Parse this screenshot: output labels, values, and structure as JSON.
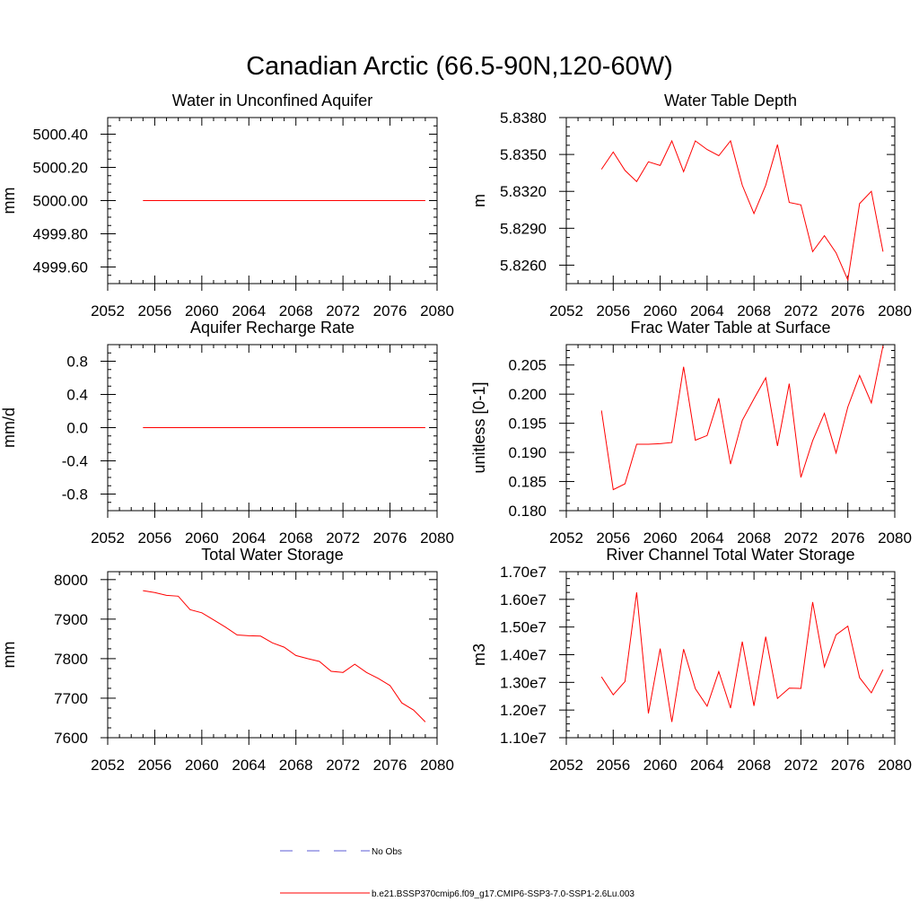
{
  "figure_title": "Canadian Arctic (66.5-90N,120-60W)",
  "legend": {
    "items": [
      {
        "label": "No Obs",
        "color": "#5b5bd6",
        "style": "dashed"
      },
      {
        "label": "b.e21.BSSP370cmip6.f09_g17.CMIP6-SSP3-7.0-SSP1-2.6Lu.003",
        "color": "#ff0000",
        "style": "solid"
      }
    ]
  },
  "chart_data": [
    {
      "type": "line",
      "title": "Water in Unconfined Aquifer",
      "ylabel": "mm",
      "xlim": [
        2052,
        2080
      ],
      "xticks": [
        2052,
        2056,
        2060,
        2064,
        2068,
        2072,
        2076,
        2080
      ],
      "xtick_labels": [
        "2052",
        "2056",
        "2060",
        "2064",
        "2068",
        "2072",
        "2076",
        "2080"
      ],
      "ylim": [
        4999.5,
        5000.5
      ],
      "yticks": [
        4999.6,
        4999.8,
        5000.0,
        5000.2,
        5000.4
      ],
      "ytick_labels": [
        "4999.60",
        "4999.80",
        "5000.00",
        "5000.20",
        "5000.40"
      ],
      "series": [
        {
          "color": "#ff0000",
          "x": [
            2055,
            2056,
            2057,
            2058,
            2059,
            2060,
            2061,
            2062,
            2063,
            2064,
            2065,
            2066,
            2067,
            2068,
            2069,
            2070,
            2071,
            2072,
            2073,
            2074,
            2075,
            2076,
            2077,
            2078,
            2079
          ],
          "values": [
            5000.0,
            5000.0,
            5000.0,
            5000.0,
            5000.0,
            5000.0,
            5000.0,
            5000.0,
            5000.0,
            5000.0,
            5000.0,
            5000.0,
            5000.0,
            5000.0,
            5000.0,
            5000.0,
            5000.0,
            5000.0,
            5000.0,
            5000.0,
            5000.0,
            5000.0,
            5000.0,
            5000.0,
            5000.0
          ]
        }
      ]
    },
    {
      "type": "line",
      "title": "Water Table Depth",
      "ylabel": "m",
      "xlim": [
        2052,
        2080
      ],
      "xticks": [
        2052,
        2056,
        2060,
        2064,
        2068,
        2072,
        2076,
        2080
      ],
      "xtick_labels": [
        "2052",
        "2056",
        "2060",
        "2064",
        "2068",
        "2072",
        "2076",
        "2080"
      ],
      "ylim": [
        5.8245,
        5.838
      ],
      "yticks": [
        5.826,
        5.829,
        5.832,
        5.835,
        5.838
      ],
      "ytick_labels": [
        "5.8260",
        "5.8290",
        "5.8320",
        "5.8350",
        "5.8380"
      ],
      "series": [
        {
          "color": "#ff0000",
          "x": [
            2055,
            2056,
            2057,
            2058,
            2059,
            2060,
            2061,
            2062,
            2063,
            2064,
            2065,
            2066,
            2067,
            2068,
            2069,
            2070,
            2071,
            2072,
            2073,
            2074,
            2075,
            2076,
            2077,
            2078,
            2079
          ],
          "values": [
            5.8338,
            5.8352,
            5.8337,
            5.8328,
            5.8344,
            5.8341,
            5.8361,
            5.8336,
            5.8361,
            5.8354,
            5.8349,
            5.8361,
            5.8325,
            5.8302,
            5.8325,
            5.8358,
            5.8311,
            5.8309,
            5.8271,
            5.8284,
            5.827,
            5.8248,
            5.831,
            5.832,
            5.8271
          ]
        }
      ]
    },
    {
      "type": "line",
      "title": "Aquifer Recharge Rate",
      "ylabel": "mm/d",
      "xlim": [
        2052,
        2080
      ],
      "xticks": [
        2052,
        2056,
        2060,
        2064,
        2068,
        2072,
        2076,
        2080
      ],
      "xtick_labels": [
        "2052",
        "2056",
        "2060",
        "2064",
        "2068",
        "2072",
        "2076",
        "2080"
      ],
      "ylim": [
        -1.0,
        1.0
      ],
      "yticks": [
        -0.8,
        -0.4,
        0.0,
        0.4,
        0.8
      ],
      "ytick_labels": [
        "-0.8",
        "-0.4",
        "0.0",
        "0.4",
        "0.8"
      ],
      "series": [
        {
          "color": "#ff0000",
          "x": [
            2055,
            2056,
            2057,
            2058,
            2059,
            2060,
            2061,
            2062,
            2063,
            2064,
            2065,
            2066,
            2067,
            2068,
            2069,
            2070,
            2071,
            2072,
            2073,
            2074,
            2075,
            2076,
            2077,
            2078,
            2079
          ],
          "values": [
            0.0,
            0.0,
            0.0,
            0.0,
            0.0,
            0.0,
            0.0,
            0.0,
            0.0,
            0.0,
            0.0,
            0.0,
            0.0,
            0.0,
            0.0,
            0.0,
            0.0,
            0.0,
            0.0,
            0.0,
            0.0,
            0.0,
            0.0,
            0.0,
            0.0
          ]
        }
      ]
    },
    {
      "type": "line",
      "title": "Frac Water Table at Surface",
      "ylabel": "unitless [0-1]",
      "xlim": [
        2052,
        2080
      ],
      "xticks": [
        2052,
        2056,
        2060,
        2064,
        2068,
        2072,
        2076,
        2080
      ],
      "xtick_labels": [
        "2052",
        "2056",
        "2060",
        "2064",
        "2068",
        "2072",
        "2076",
        "2080"
      ],
      "ylim": [
        0.18,
        0.2085
      ],
      "yticks": [
        0.18,
        0.185,
        0.19,
        0.195,
        0.2,
        0.205
      ],
      "ytick_labels": [
        "0.180",
        "0.185",
        "0.190",
        "0.195",
        "0.200",
        "0.205"
      ],
      "series": [
        {
          "color": "#ff0000",
          "x": [
            2055,
            2056,
            2057,
            2058,
            2059,
            2060,
            2061,
            2062,
            2063,
            2064,
            2065,
            2066,
            2067,
            2068,
            2069,
            2070,
            2071,
            2072,
            2073,
            2074,
            2075,
            2076,
            2077,
            2078,
            2079
          ],
          "values": [
            0.1972,
            0.1836,
            0.1846,
            0.1914,
            0.1914,
            0.1915,
            0.1917,
            0.2047,
            0.1921,
            0.1929,
            0.1993,
            0.188,
            0.1955,
            0.1992,
            0.2028,
            0.1911,
            0.2018,
            0.1857,
            0.192,
            0.1967,
            0.1899,
            0.1978,
            0.2032,
            0.1985,
            0.2083
          ]
        }
      ]
    },
    {
      "type": "line",
      "title": "Total Water Storage",
      "ylabel": "mm",
      "xlim": [
        2052,
        2080
      ],
      "xticks": [
        2052,
        2056,
        2060,
        2064,
        2068,
        2072,
        2076,
        2080
      ],
      "xtick_labels": [
        "2052",
        "2056",
        "2060",
        "2064",
        "2068",
        "2072",
        "2076",
        "2080"
      ],
      "ylim": [
        7600,
        8020
      ],
      "yticks": [
        7600,
        7700,
        7800,
        7900,
        8000
      ],
      "ytick_labels": [
        "7600",
        "7700",
        "7800",
        "7900",
        "8000"
      ],
      "series": [
        {
          "color": "#ff0000",
          "x": [
            2055,
            2056,
            2057,
            2058,
            2059,
            2060,
            2061,
            2062,
            2063,
            2064,
            2065,
            2066,
            2067,
            2068,
            2069,
            2070,
            2071,
            2072,
            2073,
            2074,
            2075,
            2076,
            2077,
            2078,
            2079
          ],
          "values": [
            7972,
            7967,
            7960,
            7958,
            7924,
            7916,
            7898,
            7880,
            7860,
            7858,
            7857,
            7840,
            7829,
            7808,
            7800,
            7793,
            7768,
            7765,
            7786,
            7765,
            7750,
            7732,
            7688,
            7670,
            7640
          ]
        }
      ]
    },
    {
      "type": "line",
      "title": "River Channel Total Water Storage",
      "ylabel": "m3",
      "xlim": [
        2052,
        2080
      ],
      "xticks": [
        2052,
        2056,
        2060,
        2064,
        2068,
        2072,
        2076,
        2080
      ],
      "xtick_labels": [
        "2052",
        "2056",
        "2060",
        "2064",
        "2068",
        "2072",
        "2076",
        "2080"
      ],
      "ylim": [
        11000000,
        17000000
      ],
      "yticks": [
        11000000,
        12000000,
        13000000,
        14000000,
        15000000,
        16000000,
        17000000
      ],
      "ytick_labels": [
        "1.10e7",
        "1.20e7",
        "1.30e7",
        "1.40e7",
        "1.50e7",
        "1.60e7",
        "1.70e7"
      ],
      "series": [
        {
          "color": "#ff0000",
          "x": [
            2055,
            2056,
            2057,
            2058,
            2059,
            2060,
            2061,
            2062,
            2063,
            2064,
            2065,
            2066,
            2067,
            2068,
            2069,
            2070,
            2071,
            2072,
            2073,
            2074,
            2075,
            2076,
            2077,
            2078,
            2079
          ],
          "values": [
            13200000,
            12550000,
            13030000,
            16250000,
            11880000,
            14220000,
            11570000,
            14200000,
            12770000,
            12140000,
            13390000,
            12070000,
            14470000,
            12150000,
            14650000,
            12420000,
            12790000,
            12780000,
            15900000,
            13560000,
            14720000,
            15030000,
            13170000,
            12620000,
            13460000
          ]
        }
      ]
    }
  ]
}
